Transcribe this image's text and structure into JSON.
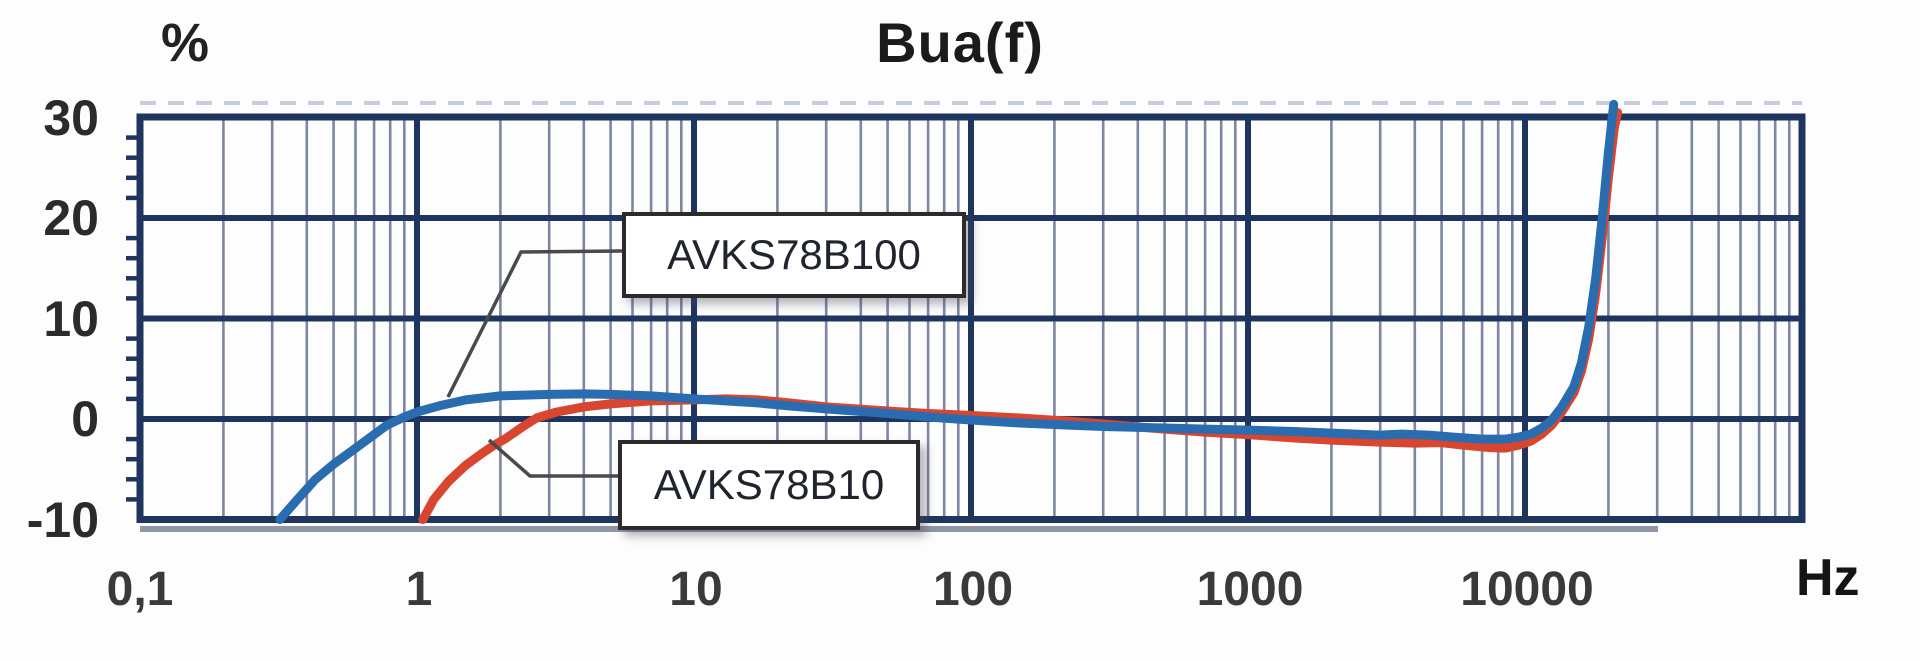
{
  "chart_data": {
    "type": "line",
    "title": "Bua(f)",
    "y_axis": {
      "unit_label": "%",
      "min": -10,
      "max": 30,
      "tick_step": 10,
      "minor_tick_step": 2,
      "ticks": [
        {
          "value": 30,
          "label": "30"
        },
        {
          "value": 20,
          "label": "20"
        },
        {
          "value": 10,
          "label": "10"
        },
        {
          "value": 0,
          "label": "0"
        },
        {
          "value": -10,
          "label": "-10"
        }
      ]
    },
    "x_axis": {
      "unit_label": "Hz",
      "scale": "log",
      "min": 0.1,
      "max": 100000,
      "ticks": [
        {
          "value": 0.1,
          "label": "0,1"
        },
        {
          "value": 1,
          "label": "1"
        },
        {
          "value": 10,
          "label": "10"
        },
        {
          "value": 100,
          "label": "100"
        },
        {
          "value": 1000,
          "label": "1000"
        },
        {
          "value": 10000,
          "label": "10000"
        }
      ]
    },
    "grid": {
      "major_color": "#1e355f",
      "minor_color": "#7d87a3",
      "border_color": "#1e355f",
      "top_dash_color": "#c6cdda",
      "shadow_color": "#8f96a6",
      "major_on": true,
      "minor_on": true
    },
    "series": [
      {
        "name": "AVKS78B10",
        "color": "#d94630",
        "points": [
          [
            1.05,
            -10
          ],
          [
            1.15,
            -8
          ],
          [
            1.3,
            -6.2
          ],
          [
            1.5,
            -4.6
          ],
          [
            1.7,
            -3.5
          ],
          [
            1.9,
            -2.6
          ],
          [
            2.1,
            -1.9
          ],
          [
            2.4,
            -0.8
          ],
          [
            2.7,
            0.1
          ],
          [
            3.2,
            0.7
          ],
          [
            4,
            1.2
          ],
          [
            5,
            1.5
          ],
          [
            7,
            1.8
          ],
          [
            10,
            1.9
          ],
          [
            13,
            2.0
          ],
          [
            17,
            1.9
          ],
          [
            22,
            1.6
          ],
          [
            30,
            1.2
          ],
          [
            50,
            0.8
          ],
          [
            70,
            0.55
          ],
          [
            100,
            0.35
          ],
          [
            150,
            0.1
          ],
          [
            220,
            -0.2
          ],
          [
            300,
            -0.5
          ],
          [
            500,
            -1.0
          ],
          [
            700,
            -1.3
          ],
          [
            1000,
            -1.55
          ],
          [
            1500,
            -1.9
          ],
          [
            2000,
            -2.1
          ],
          [
            3000,
            -2.3
          ],
          [
            4000,
            -2.4
          ],
          [
            5000,
            -2.35
          ],
          [
            6000,
            -2.6
          ],
          [
            7500,
            -2.85
          ],
          [
            8500,
            -2.9
          ],
          [
            9500,
            -2.6
          ],
          [
            10500,
            -2.2
          ],
          [
            11500,
            -1.5
          ],
          [
            12500,
            -0.6
          ],
          [
            13500,
            0.6
          ],
          [
            15000,
            2.6
          ],
          [
            16000,
            4.8
          ],
          [
            17000,
            8
          ],
          [
            18000,
            12.5
          ],
          [
            19000,
            18
          ],
          [
            20000,
            24
          ],
          [
            21000,
            29
          ],
          [
            21600,
            30.5
          ]
        ]
      },
      {
        "name": "AVKS78B100",
        "color": "#2a6cb0",
        "points": [
          [
            0.32,
            -10
          ],
          [
            0.37,
            -8
          ],
          [
            0.43,
            -6
          ],
          [
            0.5,
            -4.5
          ],
          [
            0.58,
            -3.2
          ],
          [
            0.68,
            -1.8
          ],
          [
            0.78,
            -0.6
          ],
          [
            0.9,
            0.2
          ],
          [
            1,
            0.7
          ],
          [
            1.2,
            1.3
          ],
          [
            1.5,
            1.9
          ],
          [
            2,
            2.3
          ],
          [
            3,
            2.45
          ],
          [
            4,
            2.5
          ],
          [
            5,
            2.45
          ],
          [
            7,
            2.3
          ],
          [
            10,
            2.0
          ],
          [
            13,
            1.8
          ],
          [
            17,
            1.6
          ],
          [
            22,
            1.3
          ],
          [
            30,
            1.0
          ],
          [
            50,
            0.55
          ],
          [
            70,
            0.2
          ],
          [
            100,
            -0.1
          ],
          [
            150,
            -0.4
          ],
          [
            220,
            -0.6
          ],
          [
            300,
            -0.75
          ],
          [
            500,
            -0.9
          ],
          [
            700,
            -1.0
          ],
          [
            1000,
            -1.1
          ],
          [
            1500,
            -1.25
          ],
          [
            2000,
            -1.4
          ],
          [
            3000,
            -1.6
          ],
          [
            3600,
            -1.5
          ],
          [
            4500,
            -1.6
          ],
          [
            5500,
            -1.8
          ],
          [
            7000,
            -2.0
          ],
          [
            8500,
            -2.0
          ],
          [
            9500,
            -1.8
          ],
          [
            10500,
            -1.5
          ],
          [
            11500,
            -0.9
          ],
          [
            12500,
            -0.1
          ],
          [
            13500,
            1.1
          ],
          [
            15000,
            3.2
          ],
          [
            16000,
            5.6
          ],
          [
            17000,
            9.2
          ],
          [
            18000,
            14
          ],
          [
            19000,
            20
          ],
          [
            20000,
            26.5
          ],
          [
            20900,
            31.3
          ]
        ]
      }
    ],
    "annotations": [
      {
        "label": "AVKS78B100",
        "series": "AVKS78B100"
      },
      {
        "label": "AVKS78B10",
        "series": "AVKS78B10"
      }
    ],
    "legend_position": "callout-boxes",
    "line_width": 9
  }
}
